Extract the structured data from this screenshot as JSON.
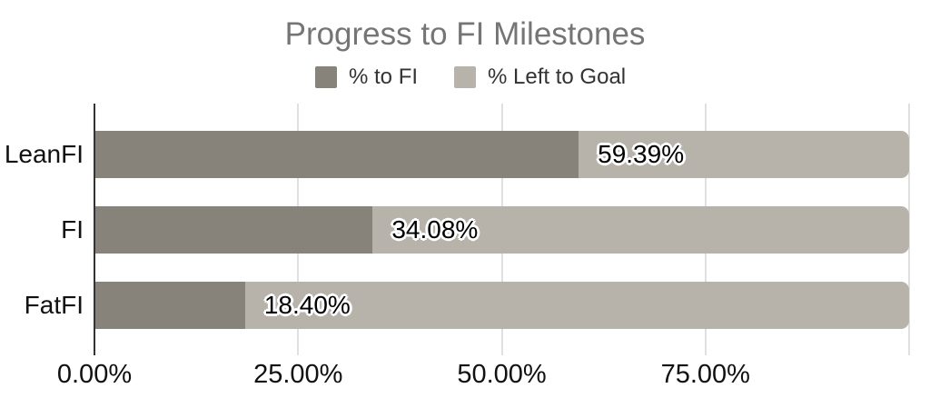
{
  "chart_title": "Progress to FI Milestones",
  "chart_data": {
    "type": "bar",
    "orientation": "horizontal",
    "stacked": true,
    "title": "Progress to FI Milestones",
    "categories": [
      "LeanFI",
      "FI",
      "FatFI"
    ],
    "series": [
      {
        "name": "% to FI",
        "color": "#87837a",
        "values": [
          59.39,
          34.08,
          18.4
        ]
      },
      {
        "name": "% Left to Goal",
        "color": "#b7b2aa",
        "values": [
          40.61,
          65.92,
          81.6
        ]
      }
    ],
    "data_labels": [
      "59.39%",
      "34.08%",
      "18.40%"
    ],
    "x_axis": {
      "tick_labels": [
        "0.00%",
        "25.00%",
        "50.00%",
        "75.00%"
      ],
      "tick_values": [
        0,
        25,
        50,
        75
      ],
      "gridline_values": [
        25,
        50,
        75,
        100
      ],
      "range": [
        0,
        100
      ]
    },
    "legend_position": "top",
    "grid": true
  },
  "colors": {
    "series_1": "#87837a",
    "series_2": "#b7b2aa",
    "gridline": "#e0e0e0",
    "axis_line": "#333333",
    "title_text": "#757575",
    "label_text": "#111111",
    "data_label_text": "#000000",
    "data_label_outline": "#ffffff",
    "background": "#ffffff"
  }
}
